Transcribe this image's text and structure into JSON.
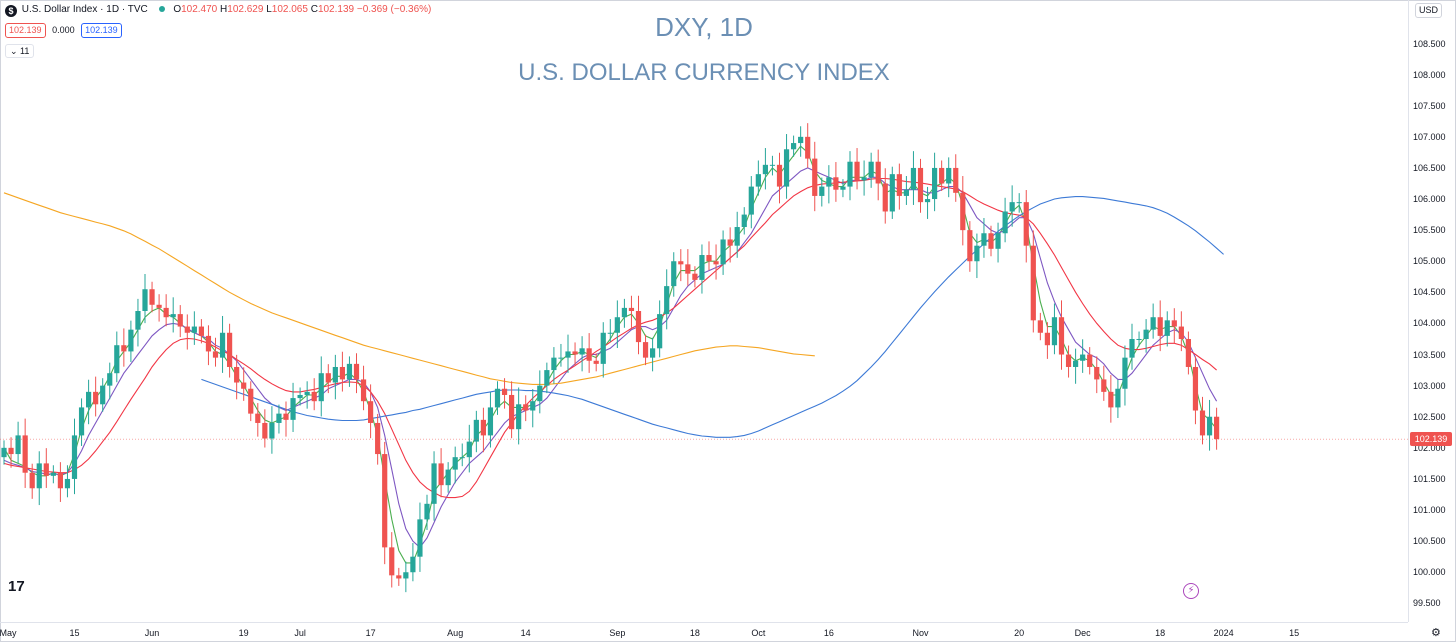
{
  "legend": {
    "symbol_badge": "$",
    "name": "U.S. Dollar Index · 1D · TVC",
    "ohlc": {
      "o_label": "O",
      "o": "102.470",
      "h_label": "H",
      "h": "102.629",
      "l_label": "L",
      "l": "102.065",
      "c_label": "C",
      "c": "102.139",
      "change": "−0.369 (−0.36%)"
    },
    "bid": "102.139",
    "spread": "0.000",
    "ask": "102.139",
    "indicators_toggle": "⌄ 11"
  },
  "currency_button": "USD",
  "last_price_tag": "102.139",
  "logo_text": "17",
  "colors": {
    "up": "#26a69a",
    "down": "#ef5350",
    "ma_fast": "#4caf50",
    "ma_mid": "#7e57c2",
    "ma_slow": "#f23645",
    "ma_100": "#3d7ad6",
    "ma_200": "#f5a623",
    "title": "#6b8fb4"
  },
  "chart_data": {
    "type": "candlestick",
    "title": "DXY, 1D",
    "subtitle": "U.S. DOLLAR CURRENCY INDEX",
    "ylim": [
      99.2,
      109.2
    ],
    "y_ticks": [
      "108.500",
      "108.000",
      "107.500",
      "107.000",
      "106.500",
      "106.000",
      "105.500",
      "105.000",
      "104.500",
      "104.000",
      "103.500",
      "103.000",
      "102.500",
      "102.000",
      "101.500",
      "101.000",
      "100.500",
      "100.000",
      "99.500"
    ],
    "x_ticks": [
      {
        "label": "May",
        "i": 0
      },
      {
        "label": "15",
        "i": 10
      },
      {
        "label": "Jun",
        "i": 21
      },
      {
        "label": "19",
        "i": 34
      },
      {
        "label": "Jul",
        "i": 42
      },
      {
        "label": "17",
        "i": 52
      },
      {
        "label": "Aug",
        "i": 64
      },
      {
        "label": "14",
        "i": 74
      },
      {
        "label": "Sep",
        "i": 87
      },
      {
        "label": "18",
        "i": 98
      },
      {
        "label": "Oct",
        "i": 107
      },
      {
        "label": "16",
        "i": 117
      },
      {
        "label": "Nov",
        "i": 130
      },
      {
        "label": "20",
        "i": 144
      },
      {
        "label": "Dec",
        "i": 153
      },
      {
        "label": "18",
        "i": 164
      },
      {
        "label": "2024",
        "i": 173
      },
      {
        "label": "15",
        "i": 183
      }
    ],
    "close": [
      102.0,
      101.9,
      102.2,
      101.6,
      101.35,
      101.75,
      101.55,
      101.6,
      101.35,
      101.5,
      102.2,
      102.65,
      102.9,
      102.7,
      103.0,
      103.2,
      103.65,
      103.55,
      103.9,
      104.2,
      104.55,
      104.3,
      104.25,
      104.1,
      104.15,
      103.95,
      103.85,
      103.95,
      103.8,
      103.55,
      103.45,
      103.85,
      103.3,
      103.05,
      102.95,
      102.55,
      102.4,
      102.15,
      102.4,
      102.55,
      102.45,
      102.8,
      102.85,
      102.9,
      102.75,
      103.2,
      103.05,
      103.3,
      103.1,
      103.35,
      103.1,
      102.75,
      102.4,
      101.9,
      100.4,
      99.95,
      99.9,
      100.0,
      100.25,
      100.85,
      101.1,
      101.75,
      101.4,
      101.65,
      101.85,
      101.85,
      102.1,
      102.45,
      102.2,
      102.65,
      102.95,
      102.85,
      102.3,
      102.7,
      102.6,
      102.75,
      103.0,
      103.25,
      103.45,
      103.45,
      103.55,
      103.5,
      103.6,
      103.4,
      103.35,
      103.85,
      103.85,
      104.1,
      104.25,
      104.2,
      103.7,
      103.45,
      103.6,
      104.15,
      104.6,
      105.0,
      104.95,
      104.8,
      104.7,
      105.1,
      105.0,
      104.95,
      105.35,
      105.25,
      105.55,
      105.75,
      106.2,
      106.4,
      106.55,
      106.55,
      106.2,
      106.8,
      106.9,
      107.0,
      106.65,
      106.05,
      106.2,
      106.35,
      106.15,
      106.2,
      106.6,
      106.3,
      106.35,
      106.6,
      106.25,
      105.8,
      106.4,
      106.05,
      106.15,
      106.5,
      105.95,
      106.0,
      106.5,
      106.25,
      106.5,
      106.1,
      105.5,
      105.0,
      105.25,
      105.45,
      105.2,
      105.45,
      105.8,
      105.95,
      105.95,
      105.25,
      104.05,
      103.85,
      103.65,
      104.1,
      103.5,
      103.3,
      103.4,
      103.5,
      103.3,
      103.1,
      102.9,
      102.65,
      102.95,
      103.45,
      103.75,
      103.75,
      103.9,
      104.1,
      103.8,
      104.05,
      103.95,
      103.75,
      103.3,
      102.6,
      102.2,
      102.5,
      102.14
    ],
    "series": [
      {
        "name": "",
        "color_key": "ma_fast",
        "values": [
          102.0,
          101.8,
          101.75,
          101.7,
          101.6,
          101.55,
          101.55,
          101.6,
          101.55,
          101.6,
          101.9,
          102.3,
          102.6,
          102.8,
          102.95,
          103.15,
          103.4,
          103.55,
          103.7,
          103.9,
          104.1,
          104.2,
          104.25,
          104.15,
          104.1,
          104.0,
          103.9,
          103.85,
          103.8,
          103.7,
          103.55,
          103.5,
          103.35,
          103.15,
          103.0,
          102.8,
          102.6,
          102.45,
          102.4,
          102.45,
          102.5,
          102.65,
          102.75,
          102.85,
          102.85,
          102.95,
          103.05,
          103.15,
          103.15,
          103.2,
          103.1,
          102.9,
          102.6,
          102.2,
          101.5,
          100.85,
          100.35,
          100.15,
          100.15,
          100.45,
          100.8,
          101.3,
          101.45,
          101.6,
          101.75,
          101.85,
          101.95,
          102.2,
          102.3,
          102.45,
          102.65,
          102.75,
          102.65,
          102.65,
          102.65,
          102.7,
          102.85,
          103.05,
          103.25,
          103.4,
          103.5,
          103.5,
          103.55,
          103.5,
          103.45,
          103.6,
          103.75,
          103.95,
          104.1,
          104.15,
          104.0,
          103.8,
          103.75,
          103.95,
          104.3,
          104.65,
          104.85,
          104.85,
          104.85,
          104.95,
          105.0,
          105.0,
          105.15,
          105.25,
          105.4,
          105.55,
          105.85,
          106.1,
          106.35,
          106.5,
          106.4,
          106.55,
          106.7,
          106.85,
          106.75,
          106.45,
          106.3,
          106.25,
          106.2,
          106.2,
          106.35,
          106.35,
          106.35,
          106.45,
          106.4,
          106.1,
          106.15,
          106.1,
          106.1,
          106.25,
          106.1,
          106.05,
          106.2,
          106.25,
          106.35,
          106.25,
          105.9,
          105.45,
          105.3,
          105.35,
          105.3,
          105.4,
          105.6,
          105.8,
          105.9,
          105.6,
          104.95,
          104.35,
          103.95,
          103.95,
          103.75,
          103.5,
          103.4,
          103.45,
          103.4,
          103.25,
          103.05,
          102.85,
          102.85,
          103.15,
          103.45,
          103.65,
          103.8,
          103.95,
          103.9,
          103.95,
          103.95,
          103.8,
          103.5,
          103.0,
          102.55,
          102.45,
          102.3
        ]
      },
      {
        "name": "",
        "color_key": "ma_mid",
        "values": [
          101.8,
          101.75,
          101.72,
          101.68,
          101.62,
          101.6,
          101.58,
          101.58,
          101.57,
          101.6,
          101.75,
          101.95,
          102.2,
          102.4,
          102.6,
          102.8,
          103.0,
          103.2,
          103.35,
          103.5,
          103.65,
          103.8,
          103.9,
          103.98,
          104.0,
          103.98,
          103.92,
          103.85,
          103.8,
          103.75,
          103.65,
          103.6,
          103.5,
          103.4,
          103.25,
          103.1,
          102.95,
          102.8,
          102.7,
          102.65,
          102.6,
          102.65,
          102.7,
          102.75,
          102.8,
          102.85,
          102.95,
          103.0,
          103.05,
          103.1,
          103.1,
          103.05,
          102.9,
          102.65,
          102.2,
          101.65,
          101.1,
          100.7,
          100.5,
          100.4,
          100.55,
          100.8,
          101.05,
          101.25,
          101.45,
          101.6,
          101.75,
          101.85,
          101.95,
          102.1,
          102.25,
          102.4,
          102.5,
          102.55,
          102.6,
          102.65,
          102.7,
          102.8,
          102.95,
          103.1,
          103.25,
          103.35,
          103.45,
          103.5,
          103.5,
          103.55,
          103.6,
          103.7,
          103.8,
          103.9,
          103.95,
          103.95,
          103.9,
          103.95,
          104.05,
          104.25,
          104.45,
          104.6,
          104.7,
          104.8,
          104.85,
          104.9,
          104.95,
          105.05,
          105.15,
          105.3,
          105.45,
          105.65,
          105.85,
          106.05,
          106.15,
          106.25,
          106.35,
          106.45,
          106.5,
          106.45,
          106.4,
          106.35,
          106.3,
          106.25,
          106.3,
          106.3,
          106.3,
          106.35,
          106.35,
          106.25,
          106.2,
          106.15,
          106.15,
          106.15,
          106.15,
          106.1,
          106.1,
          106.15,
          106.2,
          106.2,
          106.1,
          105.9,
          105.7,
          105.6,
          105.5,
          105.45,
          105.5,
          105.6,
          105.7,
          105.7,
          105.45,
          105.05,
          104.65,
          104.35,
          104.1,
          103.9,
          103.7,
          103.6,
          103.5,
          103.45,
          103.35,
          103.2,
          103.1,
          103.1,
          103.2,
          103.35,
          103.5,
          103.65,
          103.75,
          103.85,
          103.9,
          103.85,
          103.7,
          103.45,
          103.2,
          102.95,
          102.75
        ]
      },
      {
        "name": "",
        "color_key": "ma_slow",
        "values": [
          101.75,
          101.72,
          101.7,
          101.68,
          101.66,
          101.64,
          101.62,
          101.61,
          101.6,
          101.6,
          101.65,
          101.72,
          101.82,
          101.95,
          102.1,
          102.25,
          102.42,
          102.6,
          102.78,
          102.95,
          103.12,
          103.3,
          103.45,
          103.58,
          103.68,
          103.74,
          103.76,
          103.75,
          103.72,
          103.68,
          103.62,
          103.56,
          103.5,
          103.42,
          103.35,
          103.27,
          103.18,
          103.1,
          103.03,
          102.97,
          102.92,
          102.9,
          102.9,
          102.92,
          102.94,
          102.97,
          103.0,
          103.03,
          103.05,
          103.06,
          103.05,
          103.0,
          102.9,
          102.75,
          102.55,
          102.3,
          102.05,
          101.8,
          101.6,
          101.45,
          101.35,
          101.28,
          101.22,
          101.2,
          101.2,
          101.22,
          101.3,
          101.45,
          101.65,
          101.85,
          102.05,
          102.25,
          102.4,
          102.55,
          102.68,
          102.8,
          102.9,
          103.0,
          103.1,
          103.18,
          103.25,
          103.32,
          103.4,
          103.47,
          103.55,
          103.62,
          103.7,
          103.78,
          103.85,
          103.92,
          103.98,
          104.02,
          104.05,
          104.1,
          104.17,
          104.25,
          104.35,
          104.45,
          104.55,
          104.65,
          104.75,
          104.85,
          104.95,
          105.05,
          105.15,
          105.25,
          105.38,
          105.5,
          105.62,
          105.75,
          105.85,
          105.95,
          106.05,
          106.12,
          106.18,
          106.22,
          106.24,
          106.25,
          106.26,
          106.27,
          106.28,
          106.29,
          106.3,
          106.32,
          106.33,
          106.33,
          106.32,
          106.3,
          106.28,
          106.27,
          106.26,
          106.24,
          106.22,
          106.2,
          106.18,
          106.16,
          106.12,
          106.05,
          105.98,
          105.92,
          105.87,
          105.82,
          105.78,
          105.76,
          105.74,
          105.7,
          105.6,
          105.45,
          105.28,
          105.1,
          104.9,
          104.7,
          104.5,
          104.32,
          104.15,
          104.0,
          103.87,
          103.75,
          103.65,
          103.6,
          103.58,
          103.58,
          103.6,
          103.63,
          103.66,
          103.68,
          103.68,
          103.65,
          103.58,
          103.5,
          103.42,
          103.35,
          103.25
        ]
      },
      {
        "name": "",
        "color_key": "ma_100",
        "values": [
          103.1,
          103.06,
          103.02,
          102.98,
          102.94,
          102.9,
          102.86,
          102.82,
          102.78,
          102.74,
          102.7,
          102.66,
          102.62,
          102.58,
          102.55,
          102.52,
          102.5,
          102.48,
          102.46,
          102.45,
          102.44,
          102.44,
          102.44,
          102.45,
          102.47,
          102.49,
          102.51,
          102.53,
          102.55,
          102.57,
          102.6,
          102.62,
          102.65,
          102.68,
          102.71,
          102.74,
          102.77,
          102.8,
          102.83,
          102.86,
          102.88,
          102.9,
          102.92,
          102.93,
          102.93,
          102.93,
          102.92,
          102.92,
          102.91,
          102.9,
          102.88,
          102.86,
          102.84,
          102.81,
          102.78,
          102.74,
          102.7,
          102.66,
          102.62,
          102.58,
          102.54,
          102.5,
          102.46,
          102.42,
          102.38,
          102.35,
          102.32,
          102.29,
          102.26,
          102.23,
          102.21,
          102.19,
          102.18,
          102.17,
          102.17,
          102.17,
          102.18,
          102.2,
          102.23,
          102.27,
          102.32,
          102.37,
          102.42,
          102.47,
          102.52,
          102.57,
          102.62,
          102.67,
          102.72,
          102.78,
          102.84,
          102.91,
          102.99,
          103.08,
          103.19,
          103.3,
          103.42,
          103.55,
          103.69,
          103.83,
          103.97,
          104.11,
          104.25,
          104.38,
          104.51,
          104.63,
          104.75,
          104.86,
          104.97,
          105.08,
          105.18,
          105.28,
          105.38,
          105.48,
          105.57,
          105.65,
          105.73,
          105.8,
          105.86,
          105.92,
          105.96,
          106.0,
          106.02,
          106.03,
          106.04,
          106.04,
          106.03,
          106.02,
          106.01,
          105.99,
          105.97,
          105.95,
          105.93,
          105.91,
          105.89,
          105.86,
          105.82,
          105.77,
          105.71,
          105.64,
          105.57,
          105.49,
          105.4,
          105.31,
          105.21,
          105.11
        ]
      },
      {
        "name": "",
        "color_key": "ma_200",
        "values": [
          106.1,
          106.06,
          106.02,
          105.98,
          105.94,
          105.9,
          105.86,
          105.82,
          105.78,
          105.75,
          105.72,
          105.69,
          105.66,
          105.63,
          105.6,
          105.57,
          105.53,
          105.49,
          105.44,
          105.38,
          105.32,
          105.26,
          105.2,
          105.13,
          105.06,
          104.99,
          104.92,
          104.85,
          104.78,
          104.71,
          104.64,
          104.57,
          104.5,
          104.44,
          104.38,
          104.32,
          104.27,
          104.22,
          104.17,
          104.13,
          104.09,
          104.05,
          104.01,
          103.97,
          103.93,
          103.89,
          103.85,
          103.81,
          103.77,
          103.73,
          103.69,
          103.65,
          103.62,
          103.59,
          103.56,
          103.53,
          103.5,
          103.47,
          103.44,
          103.41,
          103.38,
          103.35,
          103.32,
          103.29,
          103.26,
          103.23,
          103.2,
          103.17,
          103.14,
          103.11,
          103.09,
          103.07,
          103.05,
          103.04,
          103.03,
          103.02,
          103.02,
          103.02,
          103.03,
          103.04,
          103.06,
          103.08,
          103.1,
          103.12,
          103.14,
          103.17,
          103.2,
          103.23,
          103.26,
          103.29,
          103.32,
          103.35,
          103.38,
          103.41,
          103.44,
          103.47,
          103.5,
          103.53,
          103.56,
          103.58,
          103.6,
          103.62,
          103.63,
          103.64,
          103.64,
          103.63,
          103.62,
          103.61,
          103.59,
          103.57,
          103.55,
          103.53,
          103.51,
          103.5,
          103.49,
          103.48
        ]
      }
    ],
    "ma_100_start_index": 28,
    "ma_200_start_index": 0
  }
}
